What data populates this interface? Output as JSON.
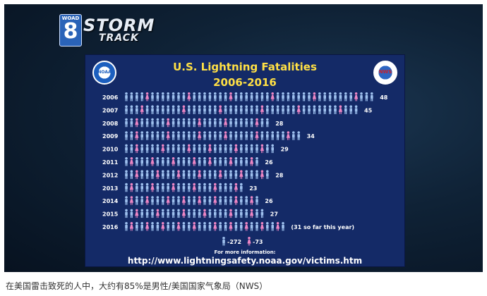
{
  "logo": {
    "callsign": "WOAD",
    "channel": "8",
    "line1": "STORM",
    "line2": "TRACK"
  },
  "slide": {
    "title_line1": "U.S. Lightning Fatalities",
    "title_line2": "2006-2016",
    "left_seal_text": "NOAA",
    "right_seal_text": "NWS",
    "info_label": "For more information:",
    "info_url": "http://www.lightningsafety.noaa.gov/victims.htm"
  },
  "caption": "在美国雷击致死的人中，大约有85%是男性/美国国家气象局（NWS）",
  "colors": {
    "male": "#9ec0ee",
    "female": "#ec86c4",
    "title": "#ffe045",
    "panel": "#142a67"
  },
  "chart_data": {
    "type": "bar",
    "title": "U.S. Lightning Fatalities",
    "subtitle": "2006-2016",
    "categories": [
      "2006",
      "2007",
      "2008",
      "2009",
      "2010",
      "2011",
      "2012",
      "2013",
      "2014",
      "2015",
      "2016"
    ],
    "values": [
      48,
      45,
      28,
      34,
      29,
      26,
      28,
      23,
      26,
      27,
      31
    ],
    "value_labels": [
      "48",
      "45",
      "28",
      "34",
      "29",
      "26",
      "28",
      "23",
      "26",
      "27",
      "(31 so far this year)"
    ],
    "female_per_year": [
      6,
      6,
      5,
      6,
      6,
      7,
      7,
      6,
      8,
      6,
      10
    ],
    "legend": {
      "male_total": "-272",
      "female_total": "-73"
    }
  }
}
